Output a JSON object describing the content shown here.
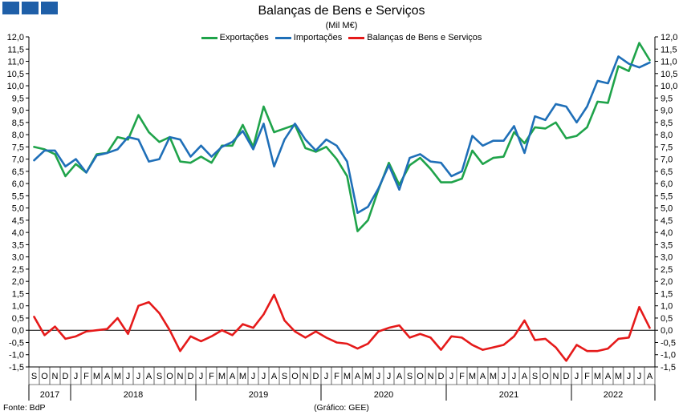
{
  "header": {
    "title": "Balanças de Bens e Serviços",
    "subtitle": "(Mil M€)"
  },
  "footer": {
    "source": "Fonte: BdP",
    "credit": "(Gráfico: GEE)"
  },
  "chart_data": {
    "type": "line",
    "title": "Balanças de Bens e Serviços",
    "subtitle": "(Mil M€)",
    "ylim": [
      -1.5,
      12.0
    ],
    "ytick_step": 0.5,
    "grid": false,
    "legend_position": "top-center",
    "month_labels": [
      "S",
      "O",
      "N",
      "D",
      "J",
      "F",
      "M",
      "A",
      "M",
      "J",
      "J",
      "A",
      "S",
      "O",
      "N",
      "D",
      "J",
      "F",
      "M",
      "A",
      "M",
      "J",
      "J",
      "A",
      "S",
      "O",
      "N",
      "D",
      "J",
      "F",
      "M",
      "A",
      "M",
      "J",
      "J",
      "A",
      "S",
      "O",
      "N",
      "D",
      "J",
      "F",
      "M",
      "A",
      "M",
      "J",
      "J",
      "A",
      "S",
      "O",
      "N",
      "D",
      "J",
      "F",
      "M",
      "A",
      "M",
      "J",
      "J",
      "A"
    ],
    "year_labels": [
      {
        "label": "2017",
        "start": 0,
        "count": 4
      },
      {
        "label": "2018",
        "start": 4,
        "count": 12
      },
      {
        "label": "2019",
        "start": 16,
        "count": 12
      },
      {
        "label": "2020",
        "start": 28,
        "count": 12
      },
      {
        "label": "2021",
        "start": 40,
        "count": 12
      },
      {
        "label": "2022",
        "start": 52,
        "count": 8
      }
    ],
    "series": [
      {
        "name": "Exportações",
        "color": "#1fa34a",
        "values": [
          7.5,
          7.4,
          7.2,
          6.3,
          6.8,
          6.45,
          7.2,
          7.25,
          7.9,
          7.8,
          8.8,
          8.1,
          7.7,
          7.9,
          6.9,
          6.85,
          7.1,
          6.85,
          7.55,
          7.55,
          8.4,
          7.5,
          9.15,
          8.1,
          8.25,
          8.4,
          7.45,
          7.3,
          7.5,
          7.0,
          6.3,
          4.05,
          4.5,
          5.75,
          6.85,
          5.95,
          6.75,
          7.05,
          6.6,
          6.05,
          6.05,
          6.2,
          7.35,
          6.8,
          7.05,
          7.1,
          8.1,
          7.65,
          8.3,
          8.25,
          8.5,
          7.85,
          7.95,
          8.3,
          9.35,
          9.3,
          10.8,
          10.6,
          11.75,
          11.05
        ]
      },
      {
        "name": "Importações",
        "color": "#1f6fb8",
        "values": [
          6.95,
          7.35,
          7.35,
          6.7,
          7.0,
          6.45,
          7.15,
          7.25,
          7.4,
          7.9,
          7.8,
          6.9,
          7.0,
          7.9,
          7.8,
          7.1,
          7.55,
          7.1,
          7.5,
          7.7,
          8.15,
          7.4,
          8.45,
          6.7,
          7.8,
          8.45,
          7.8,
          7.35,
          7.8,
          7.55,
          6.9,
          4.8,
          5.05,
          5.8,
          6.75,
          5.75,
          7.05,
          7.2,
          6.9,
          6.85,
          6.3,
          6.5,
          7.95,
          7.55,
          7.75,
          7.75,
          8.35,
          7.25,
          8.75,
          8.6,
          9.25,
          9.15,
          8.5,
          9.15,
          10.2,
          10.1,
          11.2,
          10.9,
          10.75,
          10.95
        ]
      },
      {
        "name": "Balanças de Bens e Serviços",
        "color": "#e51a1a",
        "values": [
          0.55,
          -0.2,
          0.15,
          -0.35,
          -0.25,
          -0.05,
          0.0,
          0.05,
          0.5,
          -0.15,
          1.0,
          1.15,
          0.7,
          0.0,
          -0.85,
          -0.25,
          -0.45,
          -0.25,
          0.0,
          -0.2,
          0.25,
          0.1,
          0.65,
          1.45,
          0.4,
          -0.05,
          -0.3,
          -0.05,
          -0.3,
          -0.5,
          -0.55,
          -0.75,
          -0.55,
          -0.05,
          0.1,
          0.2,
          -0.3,
          -0.15,
          -0.3,
          -0.8,
          -0.25,
          -0.3,
          -0.6,
          -0.8,
          -0.7,
          -0.6,
          -0.25,
          0.4,
          -0.4,
          -0.35,
          -0.7,
          -1.25,
          -0.6,
          -0.85,
          -0.85,
          -0.75,
          -0.35,
          -0.3,
          0.95,
          0.1
        ]
      }
    ]
  }
}
